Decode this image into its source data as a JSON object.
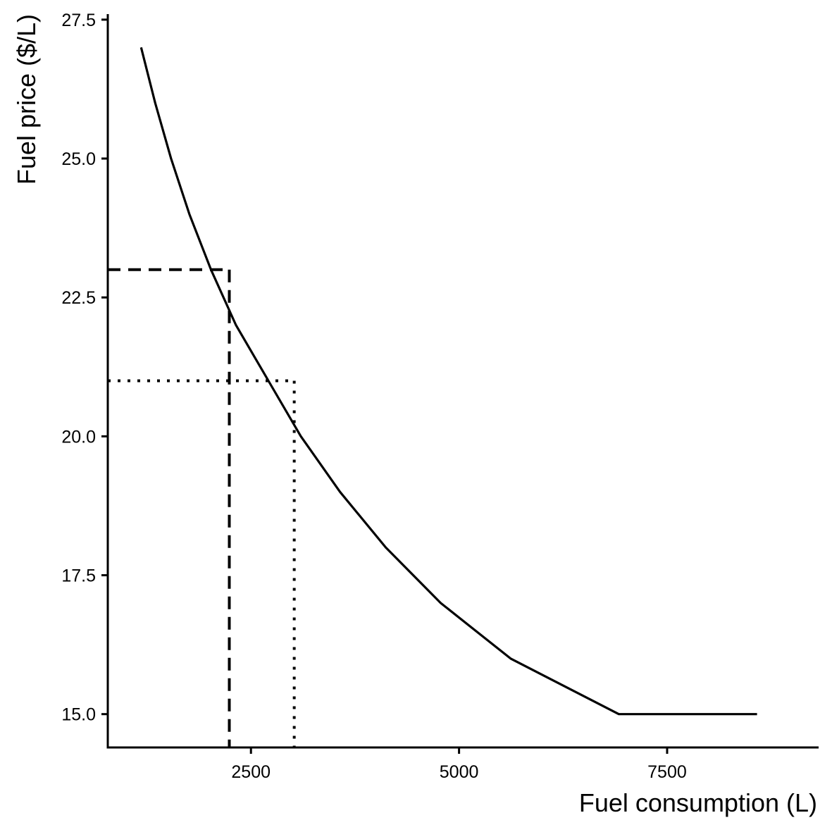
{
  "chart_data": {
    "type": "line",
    "xlabel": "Fuel consumption (L)",
    "ylabel": "Fuel price ($/L)",
    "xlim": [
      780,
      9320
    ],
    "ylim": [
      14.4,
      27.6
    ],
    "x_ticks": [
      2500,
      5000,
      7500
    ],
    "x_tick_labels": [
      "2500",
      "5000",
      "7500"
    ],
    "y_ticks": [
      15.0,
      17.5,
      20.0,
      22.5,
      25.0,
      27.5
    ],
    "y_tick_labels": [
      "15.0",
      "17.5",
      "20.0",
      "22.5",
      "25.0",
      "27.5"
    ],
    "grid": false,
    "legend": "none",
    "series": [
      {
        "x": [
          1180,
          1350,
          1540,
          1760,
          2020,
          2320,
          2710,
          3100,
          3570,
          4120,
          4780,
          5620,
          6920,
          8580
        ],
        "y": [
          27.0,
          26.0,
          25.0,
          24.0,
          23.0,
          22.0,
          21.0,
          20.0,
          19.0,
          18.0,
          17.0,
          16.0,
          15.0,
          15.0
        ],
        "style": "solid"
      }
    ],
    "guides": [
      {
        "x": 2240,
        "y": 23.0,
        "style": "dashed"
      },
      {
        "x": 3020,
        "y": 21.0,
        "style": "dotted"
      }
    ],
    "color": "#000000"
  }
}
